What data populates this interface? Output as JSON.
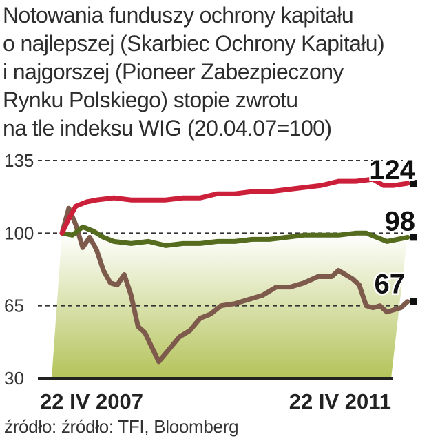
{
  "title_lines": [
    "Notowania funduszy ochrony kapitału",
    "o najlepszej (Skarbiec Ochrony Kapitału)",
    "i najgorszej (Pioneer Zabezpieczony",
    "Rynku Polskiego) stopie zwrotu",
    "na tle indeksu WIG (20.04.07=100)"
  ],
  "source": "źródło: źródło: TFI, Bloomberg",
  "colors": {
    "best": "#cc1f3a",
    "wig": "#556b1e",
    "worst": "#7d5a4b",
    "area_top": "#ffffff",
    "area_bottom": "#b4c35a",
    "axis": "#222222"
  },
  "chart_data": {
    "type": "line",
    "title": "Notowania funduszy ochrony kapitału o najlepszej (Skarbiec Ochrony Kapitału) i najgorszej (Pioneer Zabezpieczony Rynku Polskiego) stopie zwrotu na tle indeksu WIG (20.04.07=100)",
    "x_tick_labels": [
      "22 IV 2007",
      "22 IV 2011"
    ],
    "y_ticks": [
      "135",
      "100",
      "65",
      "30"
    ],
    "ylim": [
      30,
      135
    ],
    "grid": "dashed horizontal lines at 135, 100 and 65",
    "end_labels": [
      "124",
      "98",
      "67"
    ],
    "series": [
      {
        "id": "best",
        "x": [
          0,
          0.02,
          0.04,
          0.07,
          0.1,
          0.15,
          0.2,
          0.25,
          0.3,
          0.35,
          0.4,
          0.45,
          0.5,
          0.55,
          0.6,
          0.65,
          0.7,
          0.75,
          0.8,
          0.85,
          0.9,
          0.93,
          0.96,
          1.0
        ],
        "values": [
          100,
          107,
          113,
          115,
          116,
          117,
          116,
          116,
          116,
          117,
          117,
          119,
          119,
          120,
          120,
          121,
          122,
          123,
          125,
          125,
          126,
          123,
          123,
          124
        ]
      },
      {
        "id": "wig",
        "x": [
          0,
          0.03,
          0.06,
          0.09,
          0.12,
          0.15,
          0.2,
          0.25,
          0.3,
          0.35,
          0.4,
          0.45,
          0.5,
          0.55,
          0.6,
          0.65,
          0.7,
          0.75,
          0.8,
          0.85,
          0.88,
          0.91,
          0.94,
          0.97,
          1.0
        ],
        "values": [
          100,
          99,
          103,
          101,
          98,
          96,
          95,
          96,
          94,
          95,
          95,
          96,
          96,
          97,
          97,
          98,
          99,
          99,
          99,
          100,
          100,
          98,
          96,
          97,
          98
        ]
      },
      {
        "id": "worst",
        "x": [
          0,
          0.02,
          0.04,
          0.06,
          0.08,
          0.1,
          0.12,
          0.14,
          0.16,
          0.18,
          0.2,
          0.22,
          0.24,
          0.26,
          0.28,
          0.3,
          0.32,
          0.34,
          0.37,
          0.4,
          0.43,
          0.46,
          0.5,
          0.54,
          0.58,
          0.62,
          0.66,
          0.7,
          0.74,
          0.78,
          0.8,
          0.82,
          0.84,
          0.86,
          0.88,
          0.9,
          0.92,
          0.94,
          0.96,
          0.98,
          1.0
        ],
        "values": [
          100,
          112,
          104,
          93,
          98,
          92,
          82,
          76,
          75,
          80,
          70,
          55,
          52,
          45,
          38,
          42,
          46,
          50,
          53,
          59,
          61,
          65,
          66,
          68,
          70,
          74,
          74,
          76,
          79,
          79,
          82,
          80,
          78,
          75,
          65,
          64,
          65,
          62,
          63,
          64,
          67
        ]
      }
    ]
  }
}
